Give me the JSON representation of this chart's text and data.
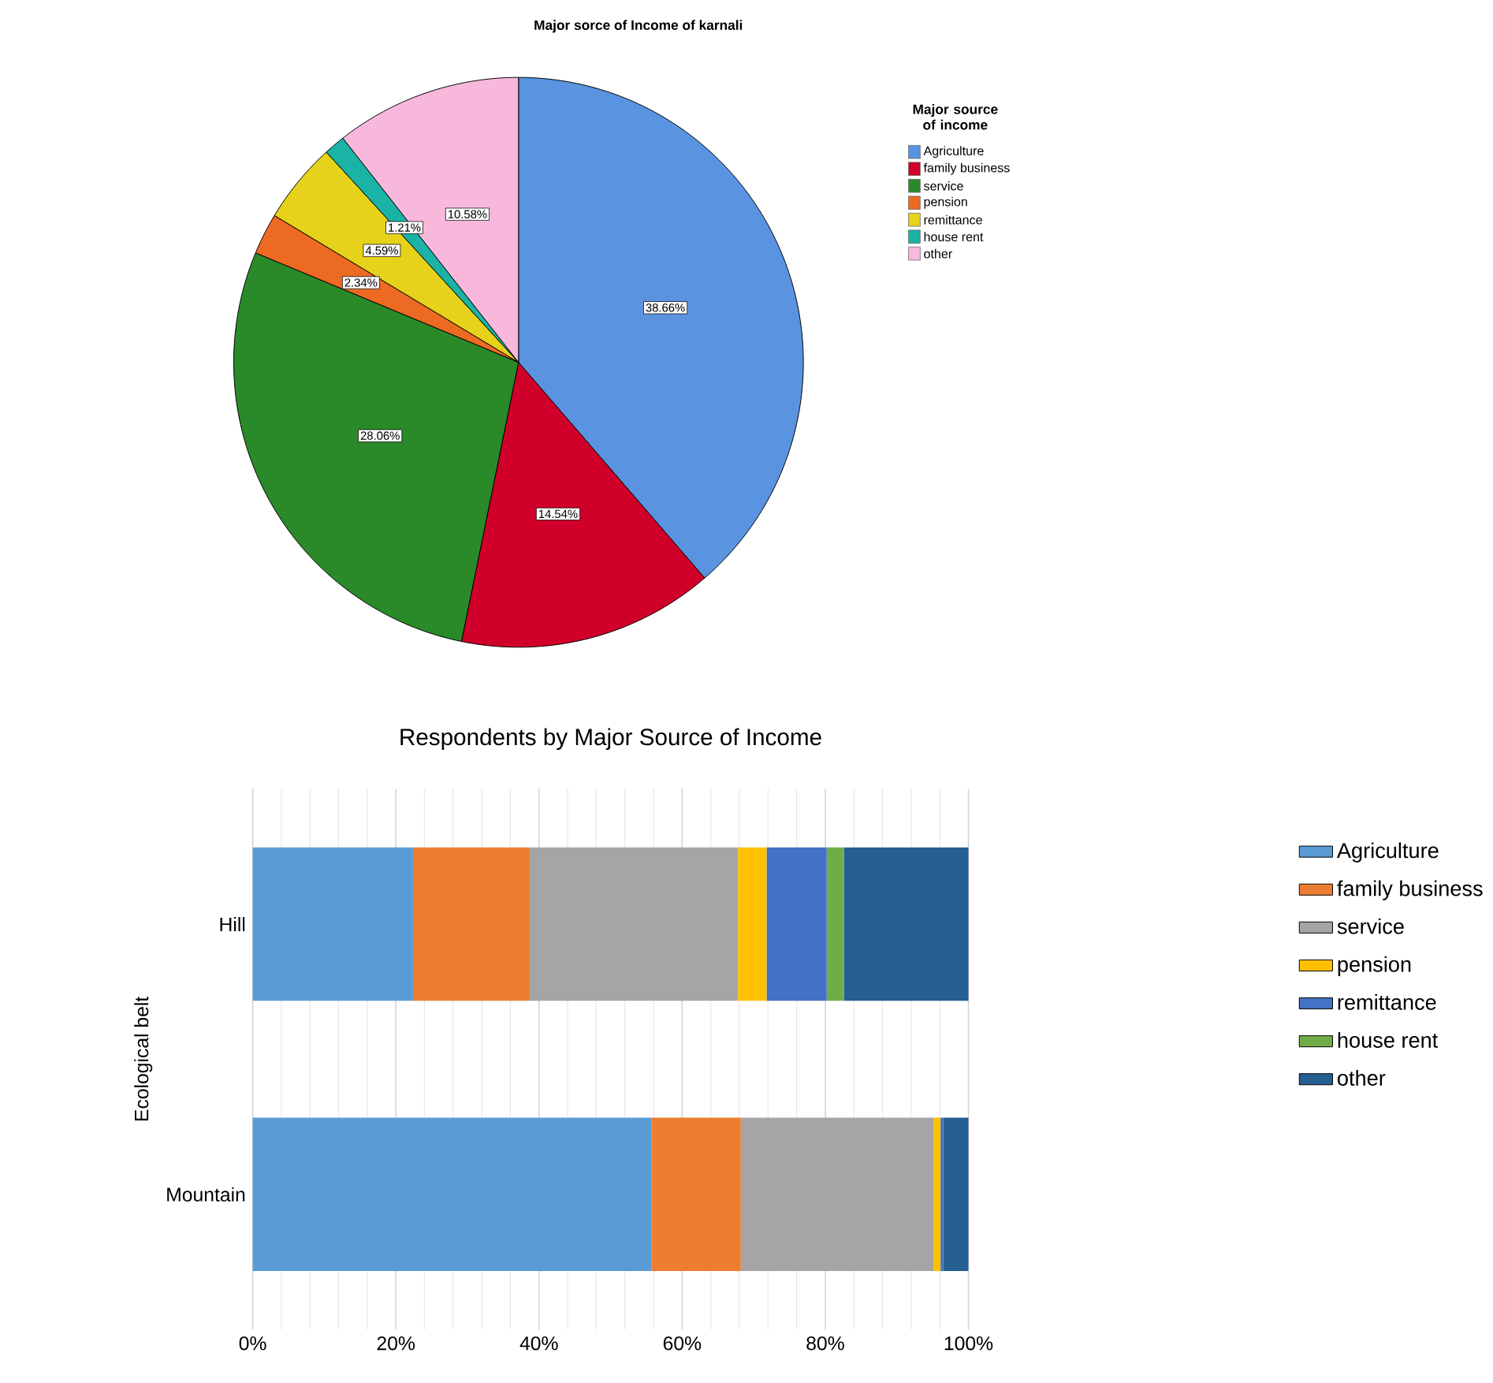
{
  "chart_data": [
    {
      "type": "pie",
      "title": "Major sorce of Income  of karnali",
      "legend_title": "Major source of income",
      "legend": "right",
      "categories": [
        "Agriculture",
        "family business",
        "service",
        "pension",
        "remittance",
        "house rent",
        "other"
      ],
      "values": [
        38.66,
        14.54,
        28.06,
        2.34,
        4.59,
        1.21,
        10.58
      ],
      "value_labels": [
        "38.66%",
        "14.54%",
        "28.06%",
        "2.34%",
        "4.59%",
        "1.21%",
        "10.58%"
      ],
      "colors": [
        "#5a93e0",
        "#d0002a",
        "#2a8a2a",
        "#ec6a22",
        "#e6d21a",
        "#1ab3a5",
        "#f7b8dc"
      ]
    },
    {
      "type": "bar",
      "orientation": "horizontal",
      "stacked": true,
      "title": "Respondents by Major Source of Income",
      "ylabel": "Ecological belt",
      "legend": "right",
      "grid": "x",
      "categories": [
        "Hill",
        "Mountain"
      ],
      "xlim": [
        0,
        100
      ],
      "xticks": [
        {
          "value": 0,
          "label": "0%"
        },
        {
          "value": 20,
          "label": "20%"
        },
        {
          "value": 40,
          "label": "40%"
        },
        {
          "value": 60,
          "label": "60%"
        },
        {
          "value": 80,
          "label": "80%"
        },
        {
          "value": 100,
          "label": "100%"
        }
      ],
      "series": [
        {
          "name": "Agriculture",
          "color": "#5b9bd5",
          "values": [
            22.4,
            55.7
          ]
        },
        {
          "name": "family business",
          "color": "#ed7d31",
          "values": [
            16.3,
            12.5
          ]
        },
        {
          "name": "service",
          "color": "#a5a5a5",
          "values": [
            29.1,
            26.9
          ]
        },
        {
          "name": "pension",
          "color": "#ffc000",
          "values": [
            4.0,
            1.0
          ]
        },
        {
          "name": "remittance",
          "color": "#4472c4",
          "values": [
            8.4,
            0.4
          ]
        },
        {
          "name": "house rent",
          "color": "#70ad47",
          "values": [
            2.4,
            0
          ]
        },
        {
          "name": "other",
          "color": "#255e91",
          "values": [
            17.4,
            3.5
          ]
        }
      ]
    }
  ]
}
